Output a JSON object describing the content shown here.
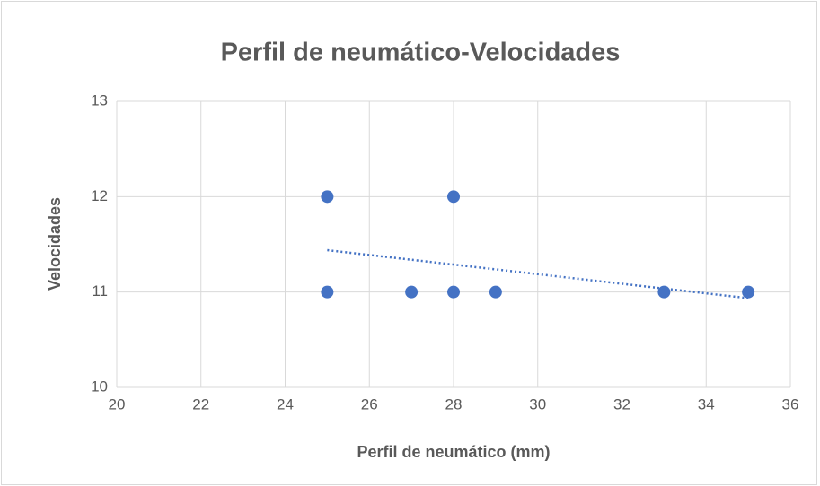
{
  "chart_data": {
    "type": "scatter",
    "title": "Perfil de neumático-Velocidades",
    "x_label": "Perfil de neumático (mm)",
    "y_label": "Velocidades",
    "series": [
      {
        "name": "Velocidades",
        "color": "#4472c4",
        "x": [
          25,
          25,
          27,
          28,
          28,
          29,
          33,
          35
        ],
        "values": [
          12,
          11,
          11,
          12,
          11,
          11,
          11,
          11
        ]
      }
    ],
    "trendline": "linear",
    "xlim": [
      20,
      36
    ],
    "xticks": [
      20,
      22,
      24,
      26,
      28,
      30,
      32,
      34,
      36
    ],
    "ylim": [
      10,
      13
    ],
    "yticks": [
      10,
      11,
      12,
      13
    ],
    "grid": true
  }
}
